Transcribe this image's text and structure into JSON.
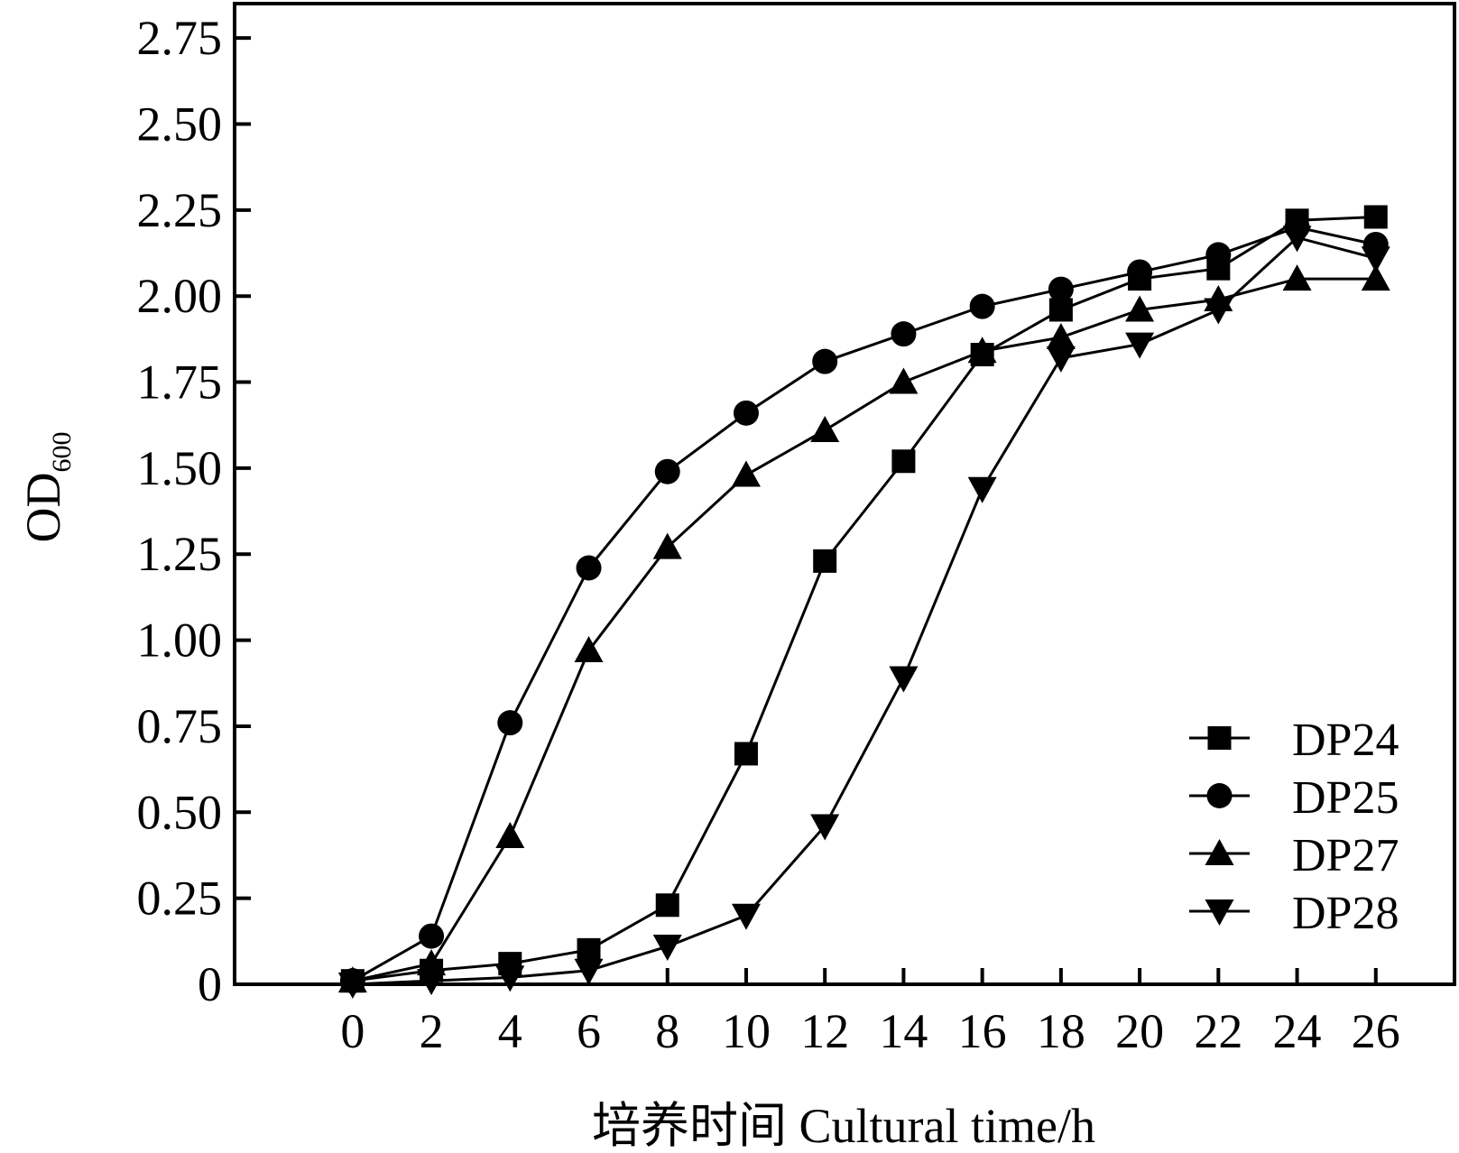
{
  "chart_data": {
    "type": "line",
    "xlabel": "培养时间 Cultural time/h",
    "ylabel": {
      "main": "OD",
      "sub": "600"
    },
    "x": [
      0,
      2,
      4,
      6,
      8,
      10,
      12,
      14,
      16,
      18,
      20,
      22,
      24,
      26
    ],
    "xlim": [
      -3,
      28
    ],
    "ylim": [
      0,
      2.85
    ],
    "xticks": [
      0,
      2,
      4,
      6,
      8,
      10,
      12,
      14,
      16,
      18,
      20,
      22,
      24,
      26
    ],
    "yticks": [
      0,
      0.25,
      0.5,
      0.75,
      1.0,
      1.25,
      1.5,
      1.75,
      2.0,
      2.25,
      2.5,
      2.75
    ],
    "ytick_labels": [
      "0",
      "0.25",
      "0.50",
      "0.75",
      "1.00",
      "1.25",
      "1.50",
      "1.75",
      "2.00",
      "2.25",
      "2.50",
      "2.75"
    ],
    "grid": false,
    "legend_position": "bottom-right",
    "series": [
      {
        "name": "DP24",
        "marker": "square",
        "values": [
          0.01,
          0.04,
          0.06,
          0.1,
          0.23,
          0.67,
          1.23,
          1.52,
          1.83,
          1.96,
          2.05,
          2.08,
          2.22,
          2.23
        ]
      },
      {
        "name": "DP25",
        "marker": "circle",
        "values": [
          0.01,
          0.14,
          0.76,
          1.21,
          1.49,
          1.66,
          1.81,
          1.89,
          1.97,
          2.02,
          2.07,
          2.12,
          2.2,
          2.15
        ]
      },
      {
        "name": "DP27",
        "marker": "triangle-up",
        "values": [
          0.01,
          0.06,
          0.43,
          0.97,
          1.27,
          1.48,
          1.61,
          1.75,
          1.84,
          1.88,
          1.96,
          1.99,
          2.05,
          2.05
        ]
      },
      {
        "name": "DP28",
        "marker": "triangle-down",
        "values": [
          0.0,
          0.01,
          0.02,
          0.04,
          0.11,
          0.2,
          0.46,
          0.89,
          1.44,
          1.82,
          1.86,
          1.96,
          2.17,
          2.11
        ]
      }
    ]
  }
}
